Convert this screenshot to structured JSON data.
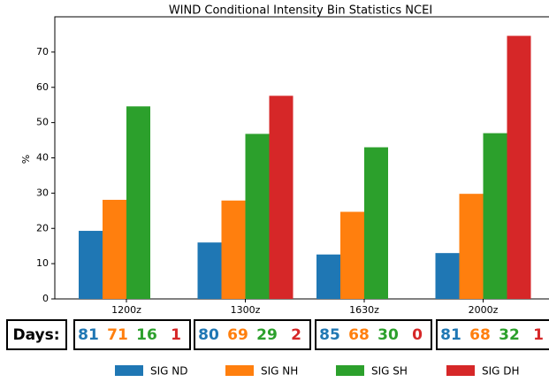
{
  "chart_data": {
    "type": "bar",
    "title": "WIND Conditional Intensity Bin Statistics NCEI",
    "y_label": "%",
    "categories": [
      "1200z",
      "1300z",
      "1630z",
      "2000z"
    ],
    "series": [
      {
        "name": "SIG ND",
        "color": "#1f77b4",
        "values": [
          19.3,
          16,
          12.6,
          13
        ]
      },
      {
        "name": "SIG NH",
        "color": "#ff7f0e",
        "values": [
          28.1,
          27.9,
          24.7,
          29.8
        ]
      },
      {
        "name": "SIG SH",
        "color": "#2ca02c",
        "values": [
          54.6,
          46.8,
          43,
          47
        ]
      },
      {
        "name": "SIG DH",
        "color": "#d62728",
        "values": [
          null,
          57.6,
          null,
          74.6
        ]
      }
    ],
    "ylim": [
      0,
      80
    ],
    "yticks": [
      0,
      10,
      20,
      30,
      40,
      50,
      60,
      70
    ],
    "days": {
      "label": "Days:",
      "counts": [
        [
          81,
          71,
          16,
          1
        ],
        [
          80,
          69,
          29,
          2
        ],
        [
          85,
          68,
          30,
          0
        ],
        [
          81,
          68,
          32,
          1
        ]
      ]
    }
  }
}
